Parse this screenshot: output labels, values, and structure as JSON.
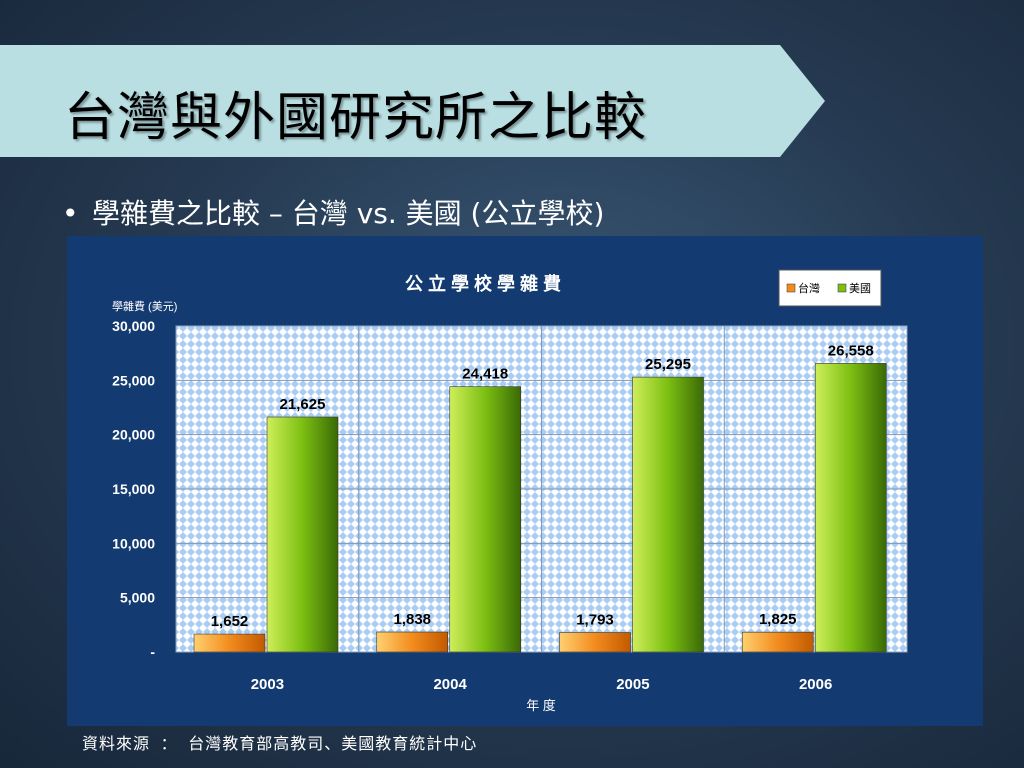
{
  "slide": {
    "title": "台灣與外國研究所之比較",
    "bullet": "學雜費之比較 – 台灣 vs. 美國 (公立學校)",
    "source": "資料來源 ： 台灣教育部高教司、美國教育統計中心"
  },
  "chart_data": {
    "type": "bar",
    "title": "公 立 學 校 學 雜 費",
    "ylabel": "學雜費 (美元)",
    "xlabel": "年 度",
    "categories": [
      "2003",
      "2004",
      "2005",
      "2006"
    ],
    "series": [
      {
        "name": "台灣",
        "values": [
          1652,
          1838,
          1793,
          1825
        ],
        "color": "#f28c1e"
      },
      {
        "name": "美國",
        "values": [
          21625,
          24418,
          25295,
          26558
        ],
        "color": "#7cbf12"
      }
    ],
    "data_labels": [
      [
        "1,652",
        "1,838",
        "1,793",
        "1,825"
      ],
      [
        "21,625",
        "24,418",
        "25,295",
        "26,558"
      ]
    ],
    "ylim": [
      0,
      30000
    ],
    "yticks": [
      0,
      5000,
      10000,
      15000,
      20000,
      25000,
      30000
    ],
    "ytick_labels": [
      "-",
      "5,000",
      "10,000",
      "15,000",
      "20,000",
      "25,000",
      "30,000"
    ],
    "grid": true,
    "legend": "top-right"
  }
}
